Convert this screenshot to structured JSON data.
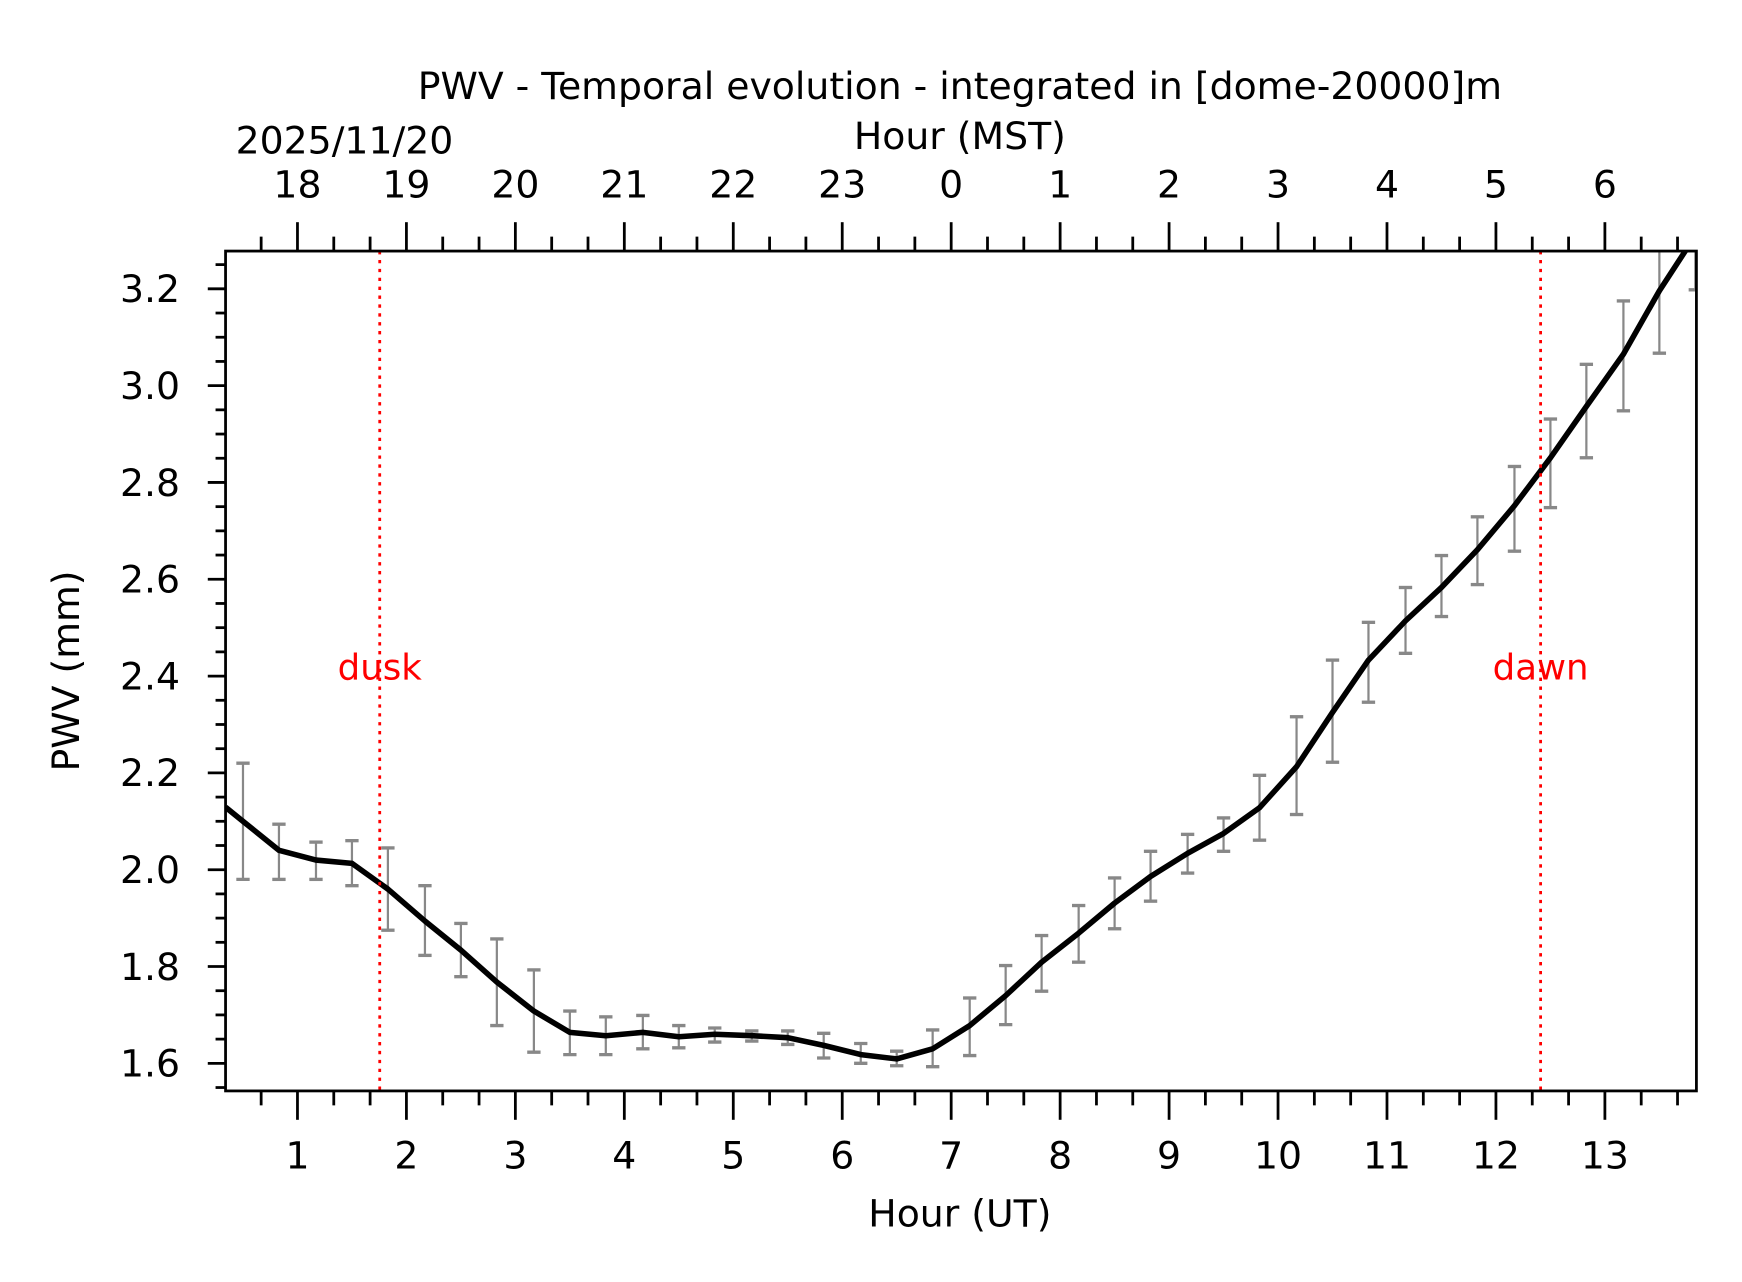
{
  "chart_data": {
    "type": "line",
    "title": "PWV - Temporal evolution - integrated in [dome-20000]m",
    "xlabel": "Hour (UT)",
    "ylabel": "PWV (mm)",
    "top_axis_label": "Hour (MST)",
    "date_label": "2025/11/20",
    "xlim": [
      0.34,
      13.84
    ],
    "ylim": [
      1.543,
      3.278
    ],
    "x_ticks": [
      1,
      2,
      3,
      4,
      5,
      6,
      7,
      8,
      9,
      10,
      11,
      12,
      13
    ],
    "x_tick_labels": [
      "1",
      "2",
      "3",
      "4",
      "5",
      "6",
      "7",
      "8",
      "9",
      "10",
      "11",
      "12",
      "13"
    ],
    "top_tick_labels": [
      "18",
      "19",
      "20",
      "21",
      "22",
      "23",
      "0",
      "1",
      "2",
      "3",
      "4",
      "5",
      "6"
    ],
    "y_ticks": [
      1.6,
      1.8,
      2.0,
      2.2,
      2.4,
      2.6,
      2.8,
      3.0,
      3.2
    ],
    "y_tick_labels": [
      "1.6",
      "1.8",
      "2.0",
      "2.2",
      "2.4",
      "2.6",
      "2.8",
      "3.0",
      "3.2"
    ],
    "grid": false,
    "colors": {
      "line": "#000000",
      "error_bars": "#888888",
      "twilight": "#ff0000"
    },
    "series": [
      {
        "x": [
          0.5,
          0.83,
          1.17,
          1.5,
          1.83,
          2.17,
          2.5,
          2.83,
          3.17,
          3.5,
          3.83,
          4.17,
          4.5,
          4.83,
          5.17,
          5.5,
          5.83,
          6.17,
          6.5,
          6.83,
          7.17,
          7.5,
          7.83,
          8.17,
          8.5,
          8.83,
          9.17,
          9.5,
          9.83,
          10.17,
          10.5,
          10.83,
          11.17,
          11.5,
          11.83,
          12.17,
          12.5,
          12.83,
          13.17,
          13.5,
          13.83
        ],
        "y": [
          2.1,
          2.04,
          2.02,
          2.013,
          1.96,
          1.894,
          1.834,
          1.768,
          1.708,
          1.664,
          1.657,
          1.664,
          1.655,
          1.66,
          1.657,
          1.653,
          1.637,
          1.618,
          1.609,
          1.63,
          1.678,
          1.74,
          1.809,
          1.869,
          1.931,
          1.986,
          2.034,
          2.075,
          2.128,
          2.213,
          2.325,
          2.433,
          2.514,
          2.583,
          2.661,
          2.752,
          2.851,
          2.957,
          3.065,
          3.196,
          3.31
        ],
        "err_low": [
          1.98,
          1.98,
          1.98,
          1.967,
          1.875,
          1.823,
          1.779,
          1.678,
          1.623,
          1.618,
          1.618,
          1.63,
          1.632,
          1.644,
          1.646,
          1.639,
          1.611,
          1.6,
          1.595,
          1.593,
          1.616,
          1.68,
          1.749,
          1.809,
          1.878,
          1.935,
          1.993,
          2.038,
          2.061,
          2.114,
          2.222,
          2.346,
          2.447,
          2.523,
          2.589,
          2.658,
          2.748,
          2.851,
          2.948,
          3.067,
          3.198
        ],
        "err_high": [
          2.22,
          2.094,
          2.057,
          2.06,
          2.045,
          1.967,
          1.889,
          1.857,
          1.793,
          1.708,
          1.696,
          1.699,
          1.678,
          1.673,
          1.667,
          1.667,
          1.662,
          1.641,
          1.625,
          1.669,
          1.735,
          1.802,
          1.864,
          1.926,
          1.983,
          2.038,
          2.073,
          2.107,
          2.195,
          2.316,
          2.433,
          2.511,
          2.583,
          2.649,
          2.729,
          2.833,
          2.931,
          3.044,
          3.175,
          3.33,
          3.42
        ]
      }
    ],
    "annotations": [
      {
        "text": "dusk",
        "x": 1.755,
        "y": 2.4
      },
      {
        "text": "dawn",
        "x": 12.41,
        "y": 2.4
      }
    ]
  }
}
